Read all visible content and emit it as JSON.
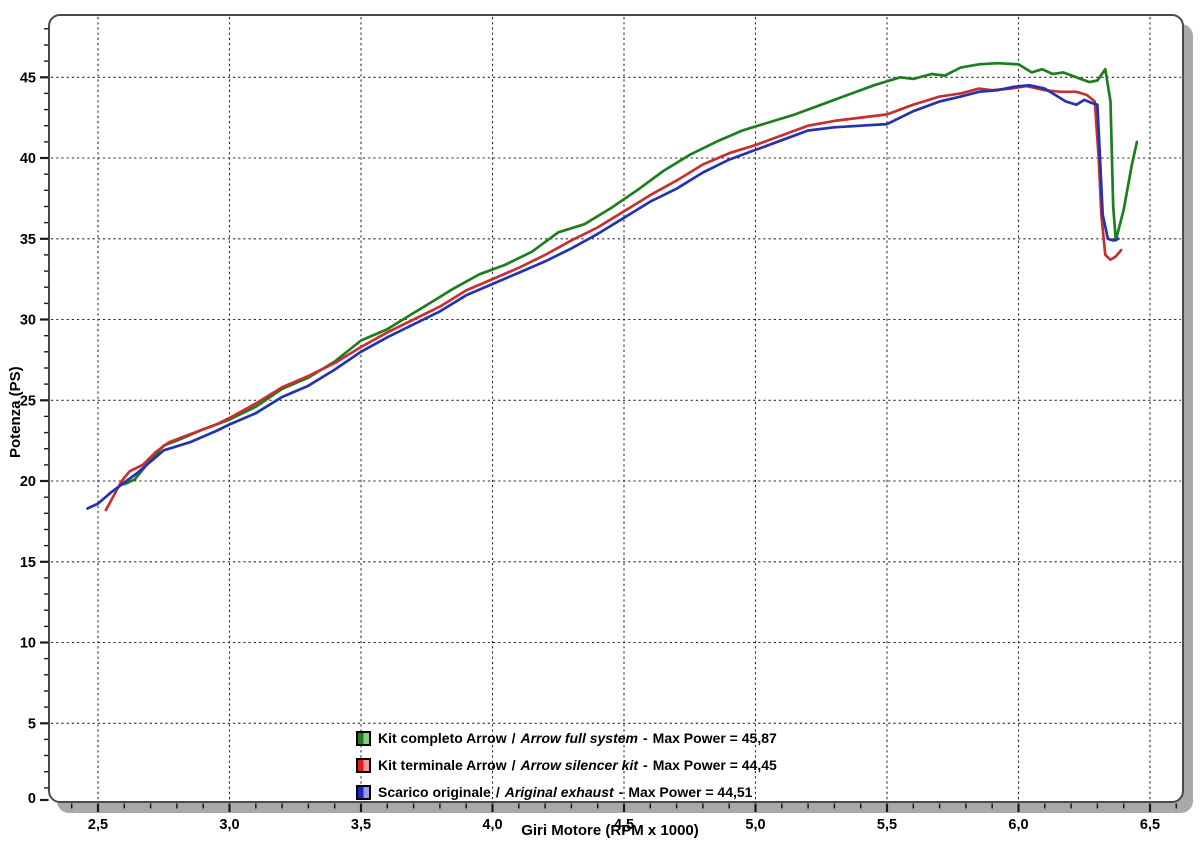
{
  "chart_data": {
    "type": "line",
    "title": "",
    "xlabel": "Giri Motore (RPM x 1000)",
    "ylabel": "Potenza (PS)",
    "legend_separator": "/",
    "legend_dash": "-",
    "grid": {
      "style": "dotted",
      "color": "#2b2b2b"
    },
    "x_axis": {
      "min": 2.31,
      "max": 6.63,
      "minor_step": 0.1,
      "major_ticks": [
        2.5,
        3.0,
        3.5,
        4.0,
        4.5,
        5.0,
        5.5,
        6.0,
        6.5
      ],
      "major_tick_labels": [
        "2,5",
        "3,0",
        "3,5",
        "4,0",
        "4,5",
        "5,0",
        "5,5",
        "6,0",
        "6,5"
      ]
    },
    "y_axis": {
      "min": 0,
      "max": 48.7,
      "minor_step": 1,
      "major_ticks": [
        0,
        5,
        10,
        15,
        20,
        25,
        30,
        35,
        40,
        45
      ],
      "major_tick_labels": [
        "0",
        "5",
        "10",
        "15",
        "20",
        "25",
        "30",
        "35",
        "40",
        "45"
      ]
    },
    "series": [
      {
        "id": "arrow-full-system",
        "label_it": "Kit completo Arrow",
        "label_en": "Arrow full system",
        "max_label": "Max Power = 45,87",
        "max_power_ps": 45.87,
        "color": "#1e7d1e",
        "swatch_colors": [
          "#227a22",
          "#86d086"
        ],
        "points": [
          [
            2.6,
            19.8
          ],
          [
            2.64,
            20.1
          ],
          [
            2.7,
            21.3
          ],
          [
            2.75,
            22.2
          ],
          [
            2.8,
            22.5
          ],
          [
            2.9,
            23.2
          ],
          [
            3.0,
            23.8
          ],
          [
            3.1,
            24.6
          ],
          [
            3.2,
            25.7
          ],
          [
            3.3,
            26.4
          ],
          [
            3.4,
            27.4
          ],
          [
            3.5,
            28.7
          ],
          [
            3.6,
            29.4
          ],
          [
            3.7,
            30.4
          ],
          [
            3.75,
            30.9
          ],
          [
            3.85,
            31.9
          ],
          [
            3.95,
            32.8
          ],
          [
            4.05,
            33.4
          ],
          [
            4.15,
            34.2
          ],
          [
            4.25,
            35.4
          ],
          [
            4.35,
            35.9
          ],
          [
            4.45,
            36.9
          ],
          [
            4.55,
            38.0
          ],
          [
            4.65,
            39.2
          ],
          [
            4.75,
            40.2
          ],
          [
            4.85,
            41.0
          ],
          [
            4.95,
            41.7
          ],
          [
            5.05,
            42.2
          ],
          [
            5.15,
            42.7
          ],
          [
            5.25,
            43.3
          ],
          [
            5.35,
            43.9
          ],
          [
            5.45,
            44.5
          ],
          [
            5.55,
            45.0
          ],
          [
            5.6,
            44.9
          ],
          [
            5.67,
            45.2
          ],
          [
            5.72,
            45.1
          ],
          [
            5.78,
            45.6
          ],
          [
            5.85,
            45.8
          ],
          [
            5.92,
            45.87
          ],
          [
            6.0,
            45.8
          ],
          [
            6.05,
            45.3
          ],
          [
            6.09,
            45.5
          ],
          [
            6.13,
            45.2
          ],
          [
            6.17,
            45.3
          ],
          [
            6.22,
            45.0
          ],
          [
            6.27,
            44.7
          ],
          [
            6.3,
            44.8
          ],
          [
            6.33,
            45.5
          ],
          [
            6.35,
            43.5
          ],
          [
            6.36,
            37.0
          ],
          [
            6.37,
            34.9
          ],
          [
            6.4,
            36.8
          ],
          [
            6.43,
            39.5
          ],
          [
            6.45,
            41.0
          ]
        ]
      },
      {
        "id": "arrow-silencer-kit",
        "label_it": "Kit terminale Arrow",
        "label_en": "Arrow silencer kit",
        "max_label": "Max Power = 44,45",
        "max_power_ps": 44.45,
        "color": "#c63030",
        "swatch_colors": [
          "#e31a1a",
          "#f59a9a"
        ],
        "points": [
          [
            2.53,
            18.2
          ],
          [
            2.56,
            19.1
          ],
          [
            2.59,
            20.0
          ],
          [
            2.62,
            20.6
          ],
          [
            2.67,
            21.0
          ],
          [
            2.72,
            21.8
          ],
          [
            2.77,
            22.4
          ],
          [
            2.85,
            22.9
          ],
          [
            2.95,
            23.5
          ],
          [
            3.0,
            23.9
          ],
          [
            3.1,
            24.8
          ],
          [
            3.2,
            25.8
          ],
          [
            3.3,
            26.5
          ],
          [
            3.4,
            27.3
          ],
          [
            3.5,
            28.3
          ],
          [
            3.6,
            29.2
          ],
          [
            3.7,
            30.0
          ],
          [
            3.8,
            30.8
          ],
          [
            3.9,
            31.8
          ],
          [
            4.0,
            32.5
          ],
          [
            4.1,
            33.2
          ],
          [
            4.2,
            34.0
          ],
          [
            4.3,
            34.9
          ],
          [
            4.4,
            35.7
          ],
          [
            4.5,
            36.7
          ],
          [
            4.6,
            37.7
          ],
          [
            4.7,
            38.6
          ],
          [
            4.8,
            39.6
          ],
          [
            4.9,
            40.3
          ],
          [
            5.0,
            40.8
          ],
          [
            5.1,
            41.4
          ],
          [
            5.2,
            42.0
          ],
          [
            5.3,
            42.3
          ],
          [
            5.4,
            42.5
          ],
          [
            5.5,
            42.7
          ],
          [
            5.6,
            43.3
          ],
          [
            5.7,
            43.8
          ],
          [
            5.78,
            44.0
          ],
          [
            5.85,
            44.3
          ],
          [
            5.9,
            44.2
          ],
          [
            5.97,
            44.3
          ],
          [
            6.03,
            44.45
          ],
          [
            6.1,
            44.2
          ],
          [
            6.16,
            44.1
          ],
          [
            6.22,
            44.1
          ],
          [
            6.26,
            43.9
          ],
          [
            6.29,
            43.5
          ],
          [
            6.305,
            40.0
          ],
          [
            6.315,
            36.5
          ],
          [
            6.33,
            34.0
          ],
          [
            6.35,
            33.7
          ],
          [
            6.37,
            33.9
          ],
          [
            6.39,
            34.3
          ]
        ]
      },
      {
        "id": "original-exhaust",
        "label_it": "Scarico originale",
        "label_en": "Ariginal exhaust",
        "max_label": "Max Power = 44,51",
        "max_power_ps": 44.51,
        "color": "#2433ad",
        "swatch_colors": [
          "#2020d0",
          "#9a9ae8"
        ],
        "points": [
          [
            2.46,
            18.3
          ],
          [
            2.5,
            18.6
          ],
          [
            2.55,
            19.3
          ],
          [
            2.6,
            19.9
          ],
          [
            2.65,
            20.5
          ],
          [
            2.7,
            21.2
          ],
          [
            2.75,
            21.9
          ],
          [
            2.85,
            22.4
          ],
          [
            2.95,
            23.1
          ],
          [
            3.0,
            23.5
          ],
          [
            3.1,
            24.2
          ],
          [
            3.2,
            25.2
          ],
          [
            3.3,
            25.9
          ],
          [
            3.4,
            26.9
          ],
          [
            3.5,
            28.0
          ],
          [
            3.6,
            28.9
          ],
          [
            3.7,
            29.7
          ],
          [
            3.8,
            30.5
          ],
          [
            3.9,
            31.5
          ],
          [
            4.0,
            32.2
          ],
          [
            4.1,
            32.9
          ],
          [
            4.2,
            33.6
          ],
          [
            4.3,
            34.4
          ],
          [
            4.4,
            35.3
          ],
          [
            4.5,
            36.3
          ],
          [
            4.6,
            37.3
          ],
          [
            4.7,
            38.1
          ],
          [
            4.8,
            39.1
          ],
          [
            4.9,
            39.9
          ],
          [
            5.0,
            40.5
          ],
          [
            5.1,
            41.1
          ],
          [
            5.2,
            41.7
          ],
          [
            5.3,
            41.9
          ],
          [
            5.4,
            42.0
          ],
          [
            5.5,
            42.1
          ],
          [
            5.6,
            42.9
          ],
          [
            5.7,
            43.5
          ],
          [
            5.78,
            43.8
          ],
          [
            5.85,
            44.1
          ],
          [
            5.92,
            44.2
          ],
          [
            5.98,
            44.4
          ],
          [
            6.04,
            44.51
          ],
          [
            6.1,
            44.3
          ],
          [
            6.14,
            43.9
          ],
          [
            6.18,
            43.5
          ],
          [
            6.22,
            43.3
          ],
          [
            6.25,
            43.6
          ],
          [
            6.28,
            43.4
          ],
          [
            6.3,
            43.3
          ],
          [
            6.31,
            40.0
          ],
          [
            6.32,
            36.5
          ],
          [
            6.34,
            35.0
          ],
          [
            6.36,
            34.9
          ],
          [
            6.38,
            35.0
          ]
        ]
      }
    ]
  }
}
